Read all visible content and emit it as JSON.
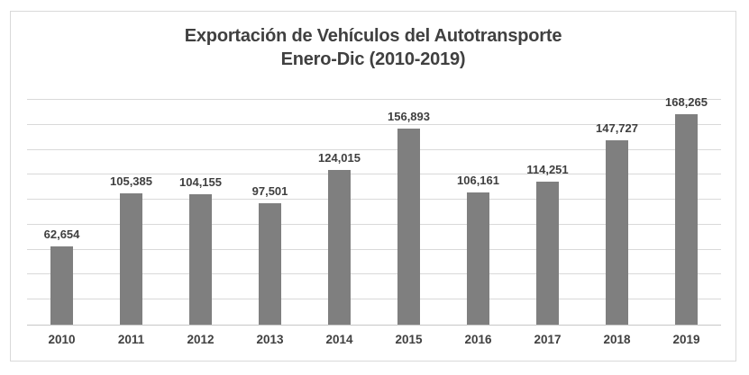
{
  "title": {
    "line1": "Exportación de Vehículos del Autotransporte",
    "line2": "Enero-Dic (2010-2019)"
  },
  "chart_data": {
    "type": "bar",
    "title": "Exportación de Vehículos del Autotransporte Enero-Dic (2010-2019)",
    "categories": [
      "2010",
      "2011",
      "2012",
      "2013",
      "2014",
      "2015",
      "2016",
      "2017",
      "2018",
      "2019"
    ],
    "values": [
      62654,
      105385,
      104155,
      97501,
      124015,
      156893,
      106161,
      114251,
      147727,
      168265
    ],
    "value_labels": [
      "62,654",
      "105,385",
      "104,155",
      "97,501",
      "124,015",
      "156,893",
      "106,161",
      "114,251",
      "147,727",
      "168,265"
    ],
    "xlabel": "",
    "ylabel": "",
    "ylim": [
      0,
      180000
    ],
    "gridline_interval": 20000,
    "grid": true,
    "legend": false,
    "y_axis_labels_visible": false,
    "bar_color": "#7f7f7f",
    "label_color": "#3f3f3f",
    "title_color": "#404040",
    "gridline_color": "#d9d9d9",
    "axis_color": "#c6c6c6",
    "frame_border_color": "#d9d9d9",
    "background_color": "#ffffff"
  }
}
